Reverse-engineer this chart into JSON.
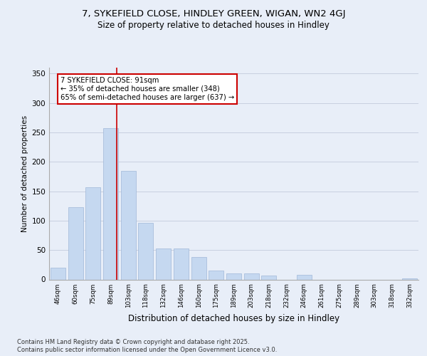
{
  "title_line1": "7, SYKEFIELD CLOSE, HINDLEY GREEN, WIGAN, WN2 4GJ",
  "title_line2": "Size of property relative to detached houses in Hindley",
  "xlabel": "Distribution of detached houses by size in Hindley",
  "ylabel": "Number of detached properties",
  "categories": [
    "46sqm",
    "60sqm",
    "75sqm",
    "89sqm",
    "103sqm",
    "118sqm",
    "132sqm",
    "146sqm",
    "160sqm",
    "175sqm",
    "189sqm",
    "203sqm",
    "218sqm",
    "232sqm",
    "246sqm",
    "261sqm",
    "275sqm",
    "289sqm",
    "303sqm",
    "318sqm",
    "332sqm"
  ],
  "values": [
    20,
    123,
    157,
    257,
    184,
    96,
    53,
    53,
    38,
    15,
    10,
    10,
    7,
    0,
    8,
    0,
    0,
    0,
    0,
    0,
    2
  ],
  "bar_color": "#c5d8f0",
  "bar_edgecolor": "#a0b8d8",
  "vline_index": 3,
  "vline_color": "#cc0000",
  "annotation_text": "7 SYKEFIELD CLOSE: 91sqm\n← 35% of detached houses are smaller (348)\n65% of semi-detached houses are larger (637) →",
  "annotation_box_color": "#ffffff",
  "annotation_box_edgecolor": "#cc0000",
  "ylim": [
    0,
    360
  ],
  "yticks": [
    0,
    50,
    100,
    150,
    200,
    250,
    300,
    350
  ],
  "background_color": "#e8eef8",
  "plot_background": "#e8eef8",
  "footer_line1": "Contains HM Land Registry data © Crown copyright and database right 2025.",
  "footer_line2": "Contains public sector information licensed under the Open Government Licence v3.0."
}
